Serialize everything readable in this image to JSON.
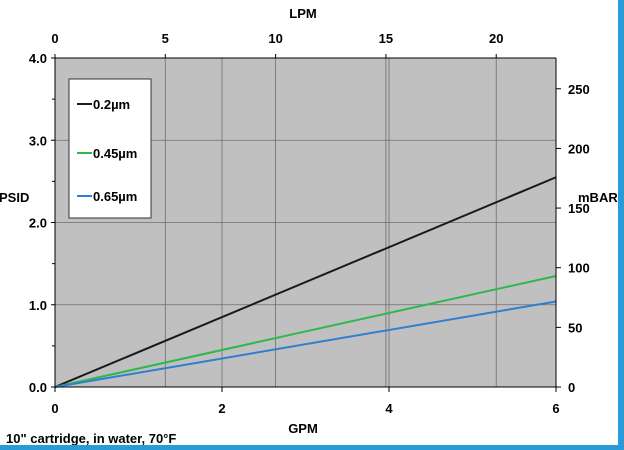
{
  "chart_data": {
    "type": "line",
    "title": "",
    "xlabel": "GPM",
    "ylabel": "PSID",
    "x2label": "LPM",
    "y2label": "mBAR",
    "xlim": [
      0,
      6
    ],
    "ylim": [
      0,
      4
    ],
    "x2lim": [
      0,
      22.71
    ],
    "y2lim": [
      0,
      275.8
    ],
    "xticks": [
      "0",
      "2",
      "4",
      "6"
    ],
    "yticks": [
      "0.0",
      "1.0",
      "2.0",
      "3.0",
      "4.0"
    ],
    "x2ticks": [
      "0",
      "5",
      "10",
      "15",
      "20"
    ],
    "y2ticks": [
      "0",
      "50",
      "100",
      "150",
      "200",
      "250"
    ],
    "grid": true,
    "legend_position": "top-left",
    "background": "#c0c0c0",
    "note": "10\" cartridge, in water, 70°F",
    "series": [
      {
        "name": "0.2µm",
        "color": "#1a1a1a",
        "x": [
          0,
          6
        ],
        "y": [
          0,
          2.55
        ]
      },
      {
        "name": "0.45µm",
        "color": "#2db84d",
        "x": [
          0,
          6
        ],
        "y": [
          0,
          1.35
        ]
      },
      {
        "name": "0.65µm",
        "color": "#2f7fd0",
        "x": [
          0,
          6
        ],
        "y": [
          0,
          1.04
        ]
      }
    ]
  }
}
